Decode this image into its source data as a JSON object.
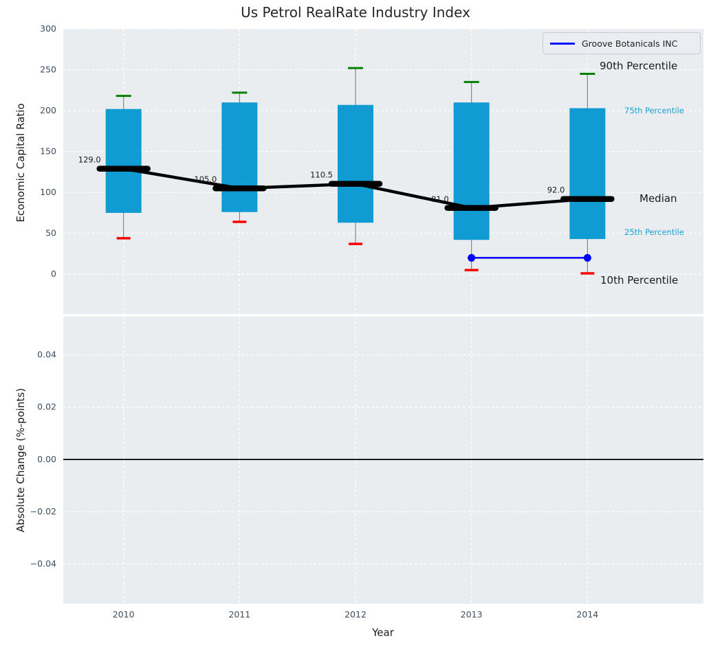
{
  "chart_data": {
    "type": "boxplot-line-combo",
    "title": "Us Petrol RealRate Industry Index",
    "xlabel": "Year",
    "xlim": [
      2009.48,
      2015.0
    ],
    "x_values": [
      2010,
      2011,
      2012,
      2013,
      2014
    ],
    "xtick_labels": [
      "2010",
      "2011",
      "2012",
      "2013",
      "2014"
    ],
    "legend": {
      "label": "Groove Botanicals INC",
      "line_color": "#0000ff"
    },
    "panels": [
      {
        "ylabel": "Economic Capital Ratio",
        "ylim": [
          -48.5,
          300
        ],
        "ytick_values": [
          0,
          50,
          100,
          150,
          200,
          250,
          300
        ],
        "ytick_labels": [
          "0",
          "50",
          "100",
          "150",
          "200",
          "250",
          "300"
        ],
        "grid": true,
        "boxes": {
          "p90": [
            218,
            222,
            252,
            235,
            245
          ],
          "p75": [
            202,
            210,
            207,
            210,
            203
          ],
          "median": [
            129,
            105,
            110.5,
            81,
            92
          ],
          "p25": [
            75,
            76,
            63,
            42,
            43
          ],
          "p10": [
            44,
            64,
            37,
            5,
            1
          ]
        },
        "median_labels": [
          "129.0",
          "105.0",
          "110.5",
          "81.0",
          "92.0"
        ],
        "company_series": {
          "name": "Groove Botanicals INC",
          "x": [
            2013,
            2014
          ],
          "y": [
            20,
            20
          ]
        },
        "annotations": {
          "p90": "90th Percentile",
          "p75": "75th Percentile",
          "median": "Median",
          "p25": "25th Percentile",
          "p10": "10th Percentile"
        }
      },
      {
        "ylabel": "Absolute Change (%-points)",
        "ylim": [
          -0.0552,
          0.0546
        ],
        "ytick_values": [
          0.04,
          0.02,
          0.0,
          -0.02,
          -0.04
        ],
        "ytick_labels": [
          "0.04",
          "0.02",
          "0.00",
          "−0.02",
          "−0.04"
        ],
        "grid": true,
        "zero_line": 0.0
      }
    ],
    "colors": {
      "box_fill": "#119bd3",
      "whisker_line": "#7a7a7a",
      "cap_high": "#008000",
      "cap_low": "#fb0000",
      "median_line": "#000000",
      "company_line": "#0000ff",
      "plot_background": "#e9edf0",
      "gridline": "#ffffff",
      "tick_label": "#3b4e60",
      "annotation_accent": "#189ed2",
      "annotation_text": "#1a1a1a"
    }
  }
}
